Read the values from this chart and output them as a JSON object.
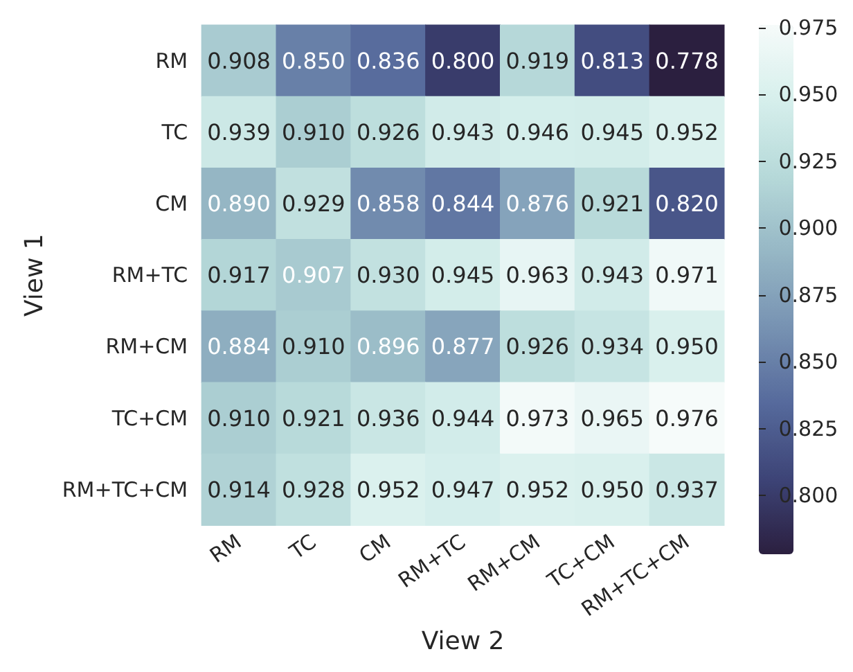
{
  "chart_data": {
    "type": "heatmap",
    "xlabel": "View 2",
    "ylabel": "View 1",
    "categories": [
      "RM",
      "TC",
      "CM",
      "RM+TC",
      "RM+CM",
      "TC+CM",
      "RM+TC+CM"
    ],
    "y_categories": [
      "RM",
      "TC",
      "CM",
      "RM+TC",
      "RM+CM",
      "TC+CM",
      "RM+TC+CM"
    ],
    "cells": [
      [
        0.908,
        0.85,
        0.836,
        0.8,
        0.919,
        0.813,
        0.778
      ],
      [
        0.939,
        0.91,
        0.926,
        0.943,
        0.946,
        0.945,
        0.952
      ],
      [
        0.89,
        0.929,
        0.858,
        0.844,
        0.876,
        0.921,
        0.82
      ],
      [
        0.917,
        0.907,
        0.93,
        0.945,
        0.963,
        0.943,
        0.971
      ],
      [
        0.884,
        0.91,
        0.896,
        0.877,
        0.926,
        0.934,
        0.95
      ],
      [
        0.91,
        0.921,
        0.936,
        0.944,
        0.973,
        0.965,
        0.976
      ],
      [
        0.914,
        0.928,
        0.952,
        0.947,
        0.952,
        0.95,
        0.937
      ]
    ],
    "cell_labels": [
      [
        "0.908",
        "0.850",
        "0.836",
        "0.800",
        "0.919",
        "0.813",
        "0.778"
      ],
      [
        "0.939",
        "0.910",
        "0.926",
        "0.943",
        "0.946",
        "0.945",
        "0.952"
      ],
      [
        "0.890",
        "0.929",
        "0.858",
        "0.844",
        "0.876",
        "0.921",
        "0.820"
      ],
      [
        "0.917",
        "0.907",
        "0.930",
        "0.945",
        "0.963",
        "0.943",
        "0.971"
      ],
      [
        "0.884",
        "0.910",
        "0.896",
        "0.877",
        "0.926",
        "0.934",
        "0.950"
      ],
      [
        "0.910",
        "0.921",
        "0.936",
        "0.944",
        "0.973",
        "0.965",
        "0.976"
      ],
      [
        "0.914",
        "0.928",
        "0.952",
        "0.947",
        "0.952",
        "0.950",
        "0.937"
      ]
    ],
    "clim": [
      0.778,
      0.976
    ],
    "cticks": [
      {
        "value": 0.8,
        "label": "0.800"
      },
      {
        "value": 0.825,
        "label": "0.825"
      },
      {
        "value": 0.85,
        "label": "0.850"
      },
      {
        "value": 0.875,
        "label": "0.875"
      },
      {
        "value": 0.9,
        "label": "0.900"
      },
      {
        "value": 0.925,
        "label": "0.925"
      },
      {
        "value": 0.95,
        "label": "0.950"
      },
      {
        "value": 0.975,
        "label": "0.975"
      }
    ],
    "data_labels": true
  }
}
